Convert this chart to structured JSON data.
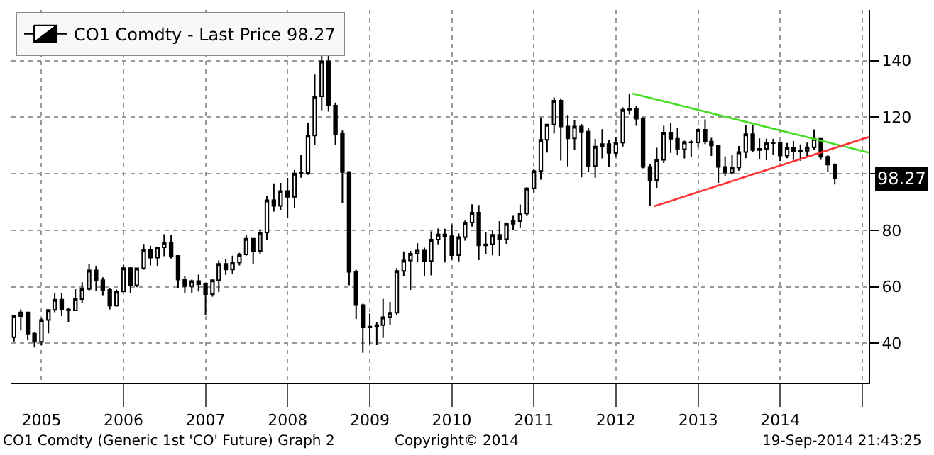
{
  "chart_data": {
    "type": "candlestick",
    "x": [
      "2004-09",
      "2004-10",
      "2004-11",
      "2004-12",
      "2005-01",
      "2005-02",
      "2005-03",
      "2005-04",
      "2005-05",
      "2005-06",
      "2005-07",
      "2005-08",
      "2005-09",
      "2005-10",
      "2005-11",
      "2005-12",
      "2006-01",
      "2006-02",
      "2006-03",
      "2006-04",
      "2006-05",
      "2006-06",
      "2006-07",
      "2006-08",
      "2006-09",
      "2006-10",
      "2006-11",
      "2006-12",
      "2007-01",
      "2007-02",
      "2007-03",
      "2007-04",
      "2007-05",
      "2007-06",
      "2007-07",
      "2007-08",
      "2007-09",
      "2007-10",
      "2007-11",
      "2007-12",
      "2008-01",
      "2008-02",
      "2008-03",
      "2008-04",
      "2008-05",
      "2008-06",
      "2008-07",
      "2008-08",
      "2008-09",
      "2008-10",
      "2008-11",
      "2008-12",
      "2009-01",
      "2009-02",
      "2009-03",
      "2009-04",
      "2009-05",
      "2009-06",
      "2009-07",
      "2009-08",
      "2009-09",
      "2009-10",
      "2009-11",
      "2009-12",
      "2010-01",
      "2010-02",
      "2010-03",
      "2010-04",
      "2010-05",
      "2010-06",
      "2010-07",
      "2010-08",
      "2010-09",
      "2010-10",
      "2010-11",
      "2010-12",
      "2011-01",
      "2011-02",
      "2011-03",
      "2011-04",
      "2011-05",
      "2011-06",
      "2011-07",
      "2011-08",
      "2011-09",
      "2011-10",
      "2011-11",
      "2011-12",
      "2012-01",
      "2012-02",
      "2012-03",
      "2012-04",
      "2012-05",
      "2012-06",
      "2012-07",
      "2012-08",
      "2012-09",
      "2012-10",
      "2012-11",
      "2012-12",
      "2013-01",
      "2013-02",
      "2013-03",
      "2013-04",
      "2013-05",
      "2013-06",
      "2013-07",
      "2013-08",
      "2013-09",
      "2013-10",
      "2013-11",
      "2013-12",
      "2014-01",
      "2014-02",
      "2014-03",
      "2014-04",
      "2014-05",
      "2014-06",
      "2014-07",
      "2014-08",
      "2014-09"
    ],
    "series": [
      {
        "name": "CO1 Comdty - Last Price 98.27",
        "color": "#000000",
        "ohlc": [
          [
            42.1,
            49.9,
            40.6,
            49.6
          ],
          [
            49.6,
            52.0,
            44.5,
            50.9
          ],
          [
            50.9,
            51.0,
            41.0,
            43.4
          ],
          [
            43.4,
            44.0,
            38.5,
            40.5
          ],
          [
            40.5,
            48.9,
            39.3,
            48.2
          ],
          [
            48.2,
            52.0,
            43.5,
            51.8
          ],
          [
            51.8,
            57.7,
            51.0,
            55.4
          ],
          [
            55.4,
            57.6,
            49.6,
            51.9
          ],
          [
            51.9,
            52.6,
            47.5,
            51.6
          ],
          [
            51.6,
            59.1,
            51.4,
            55.6
          ],
          [
            55.6,
            61.6,
            54.1,
            59.2
          ],
          [
            59.2,
            68.0,
            58.7,
            65.8
          ],
          [
            65.8,
            67.4,
            58.6,
            62.3
          ],
          [
            62.3,
            63.3,
            57.0,
            58.9
          ],
          [
            58.9,
            59.5,
            52.0,
            53.3
          ],
          [
            53.3,
            59.0,
            53.0,
            58.3
          ],
          [
            58.3,
            67.8,
            58.2,
            66.6
          ],
          [
            66.6,
            66.9,
            57.6,
            60.5
          ],
          [
            60.5,
            66.8,
            59.8,
            66.5
          ],
          [
            66.5,
            75.1,
            66.0,
            73.2
          ],
          [
            73.2,
            74.5,
            67.5,
            70.3
          ],
          [
            70.3,
            74.0,
            67.2,
            73.9
          ],
          [
            73.9,
            78.6,
            70.8,
            75.5
          ],
          [
            75.5,
            78.2,
            70.0,
            70.9
          ],
          [
            70.9,
            71.0,
            59.6,
            62.5
          ],
          [
            62.5,
            63.9,
            57.6,
            60.2
          ],
          [
            60.2,
            62.5,
            57.6,
            62.0
          ],
          [
            62.0,
            64.3,
            58.3,
            60.9
          ],
          [
            60.9,
            61.1,
            49.9,
            57.4
          ],
          [
            57.4,
            62.3,
            56.5,
            62.3
          ],
          [
            62.3,
            69.3,
            58.1,
            68.1
          ],
          [
            68.1,
            69.8,
            64.2,
            66.1
          ],
          [
            66.1,
            71.0,
            64.6,
            68.6
          ],
          [
            68.6,
            72.0,
            67.5,
            71.4
          ],
          [
            71.4,
            78.4,
            71.0,
            77.0
          ],
          [
            77.0,
            77.2,
            67.9,
            72.7
          ],
          [
            72.7,
            80.3,
            71.5,
            79.2
          ],
          [
            79.2,
            92.2,
            76.5,
            90.6
          ],
          [
            90.6,
            96.6,
            86.6,
            88.6
          ],
          [
            88.6,
            96.8,
            87.0,
            93.9
          ],
          [
            93.9,
            98.5,
            84.4,
            91.8
          ],
          [
            91.8,
            101.3,
            88.0,
            100.1
          ],
          [
            100.1,
            106.6,
            98.6,
            100.3
          ],
          [
            100.3,
            118.0,
            99.6,
            113.5
          ],
          [
            113.5,
            135.1,
            110.2,
            127.4
          ],
          [
            127.4,
            141.7,
            122.4,
            139.8
          ],
          [
            139.8,
            147.5,
            122.0,
            124.1
          ],
          [
            124.1,
            125.2,
            110.2,
            114.1
          ],
          [
            114.1,
            115.3,
            89.5,
            100.6
          ],
          [
            100.6,
            100.9,
            60.5,
            65.3
          ],
          [
            65.3,
            66.0,
            48.6,
            53.5
          ],
          [
            53.5,
            54.0,
            36.6,
            45.6
          ],
          [
            45.6,
            50.5,
            39.4,
            45.9
          ],
          [
            45.9,
            47.5,
            39.3,
            46.4
          ],
          [
            46.4,
            55.7,
            41.9,
            49.2
          ],
          [
            49.2,
            54.6,
            46.6,
            50.8
          ],
          [
            50.8,
            66.6,
            49.9,
            65.6
          ],
          [
            65.6,
            72.5,
            63.7,
            69.3
          ],
          [
            69.3,
            72.7,
            58.9,
            71.7
          ],
          [
            71.7,
            75.4,
            68.7,
            72.8
          ],
          [
            72.8,
            73.8,
            63.9,
            69.1
          ],
          [
            69.1,
            79.6,
            64.0,
            76.7
          ],
          [
            76.7,
            80.6,
            75.0,
            78.5
          ],
          [
            78.5,
            80.5,
            68.6,
            77.9
          ],
          [
            77.9,
            82.0,
            69.6,
            71.2
          ],
          [
            71.2,
            78.8,
            69.0,
            77.6
          ],
          [
            77.6,
            83.4,
            76.3,
            82.7
          ],
          [
            82.7,
            89.2,
            81.3,
            86.2
          ],
          [
            86.2,
            88.9,
            69.4,
            74.6
          ],
          [
            74.6,
            79.4,
            71.5,
            75.0
          ],
          [
            75.0,
            79.8,
            71.1,
            78.4
          ],
          [
            78.4,
            83.2,
            70.9,
            76.8
          ],
          [
            76.8,
            82.8,
            75.2,
            82.3
          ],
          [
            82.3,
            85.1,
            80.0,
            83.2
          ],
          [
            83.2,
            89.1,
            81.0,
            85.9
          ],
          [
            85.9,
            95.2,
            85.0,
            94.8
          ],
          [
            94.8,
            101.7,
            93.3,
            101.0
          ],
          [
            101.0,
            119.8,
            97.9,
            112.0
          ],
          [
            112.0,
            117.6,
            107.5,
            117.4
          ],
          [
            117.4,
            127.0,
            114.3,
            125.9
          ],
          [
            125.9,
            126.7,
            104.7,
            116.7
          ],
          [
            116.7,
            120.8,
            102.6,
            112.5
          ],
          [
            112.5,
            119.0,
            108.4,
            116.7
          ],
          [
            116.7,
            117.6,
            98.7,
            114.9
          ],
          [
            114.9,
            116.0,
            100.8,
            102.8
          ],
          [
            102.8,
            112.3,
            98.6,
            109.6
          ],
          [
            109.6,
            115.8,
            105.4,
            110.5
          ],
          [
            110.5,
            111.9,
            102.4,
            107.4
          ],
          [
            107.4,
            113.0,
            106.1,
            111.0
          ],
          [
            111.0,
            123.5,
            109.6,
            122.7
          ],
          [
            122.7,
            128.4,
            121.0,
            122.9
          ],
          [
            122.9,
            124.0,
            117.0,
            119.5
          ],
          [
            119.5,
            120.0,
            101.9,
            102.4
          ],
          [
            102.4,
            103.4,
            88.5,
            97.8
          ],
          [
            97.8,
            109.2,
            95.0,
            104.9
          ],
          [
            104.9,
            117.0,
            103.8,
            114.6
          ],
          [
            114.6,
            117.9,
            107.4,
            112.4
          ],
          [
            112.4,
            116.1,
            106.7,
            108.7
          ],
          [
            108.7,
            111.7,
            105.4,
            111.2
          ],
          [
            111.2,
            112.1,
            105.8,
            111.1
          ],
          [
            111.1,
            116.0,
            109.5,
            115.6
          ],
          [
            115.6,
            119.2,
            110.5,
            111.4
          ],
          [
            111.4,
            112.7,
            106.3,
            110.0
          ],
          [
            110.0,
            110.0,
            96.8,
            102.4
          ],
          [
            102.4,
            106.1,
            99.1,
            100.4
          ],
          [
            100.4,
            106.6,
            99.7,
            102.2
          ],
          [
            102.2,
            109.8,
            101.1,
            107.7
          ],
          [
            107.7,
            117.3,
            105.5,
            114.0
          ],
          [
            114.0,
            117.3,
            107.7,
            108.4
          ],
          [
            108.4,
            112.5,
            105.2,
            108.8
          ],
          [
            108.8,
            112.4,
            104.8,
            110.9
          ],
          [
            110.9,
            112.4,
            106.6,
            110.8
          ],
          [
            110.8,
            111.0,
            104.5,
            106.4
          ],
          [
            106.4,
            110.9,
            105.5,
            109.1
          ],
          [
            109.1,
            111.6,
            104.9,
            107.8
          ],
          [
            107.8,
            110.4,
            104.6,
            108.1
          ],
          [
            108.1,
            111.0,
            106.2,
            109.4
          ],
          [
            109.4,
            115.7,
            108.4,
            112.4
          ],
          [
            112.4,
            112.5,
            104.9,
            106.0
          ],
          [
            106.0,
            106.6,
            100.6,
            103.2
          ],
          [
            103.2,
            103.7,
            96.2,
            98.27
          ]
        ]
      },
      {
        "type": "line",
        "color": "#44dd22",
        "x": [
          "2012-03-15",
          "2015-01-30"
        ],
        "values": [
          128.4,
          107.5
        ]
      },
      {
        "type": "line",
        "color": "#ff3333",
        "x": [
          "2012-06-20",
          "2015-01-30"
        ],
        "values": [
          88.5,
          113.0
        ]
      }
    ],
    "xlim": [
      "2004-08-20",
      "2015-01-30"
    ],
    "xticks": [
      {
        "value": "2005-01-01",
        "label": "2005"
      },
      {
        "value": "2006-01-01",
        "label": "2006"
      },
      {
        "value": "2007-01-01",
        "label": "2007"
      },
      {
        "value": "2008-01-01",
        "label": "2008"
      },
      {
        "value": "2009-01-01",
        "label": "2009"
      },
      {
        "value": "2010-01-01",
        "label": "2010"
      },
      {
        "value": "2011-01-01",
        "label": "2011"
      },
      {
        "value": "2012-01-01",
        "label": "2012"
      },
      {
        "value": "2013-01-01",
        "label": "2013"
      },
      {
        "value": "2014-01-01",
        "label": "2014"
      },
      {
        "value": "2015-01-01",
        "label": null
      }
    ],
    "ylim": [
      26,
      158
    ],
    "yticks": [
      40,
      60,
      80,
      {
        "value": 100,
        "label": null
      },
      120,
      140
    ],
    "grid": true,
    "legend": "top left",
    "annotations": [
      "98.27",
      "CO1 Comdty (Generic 1st 'CO' Future) Graph 2",
      "Copyright© 2014",
      "19-Sep-2014 21:43:25"
    ]
  }
}
